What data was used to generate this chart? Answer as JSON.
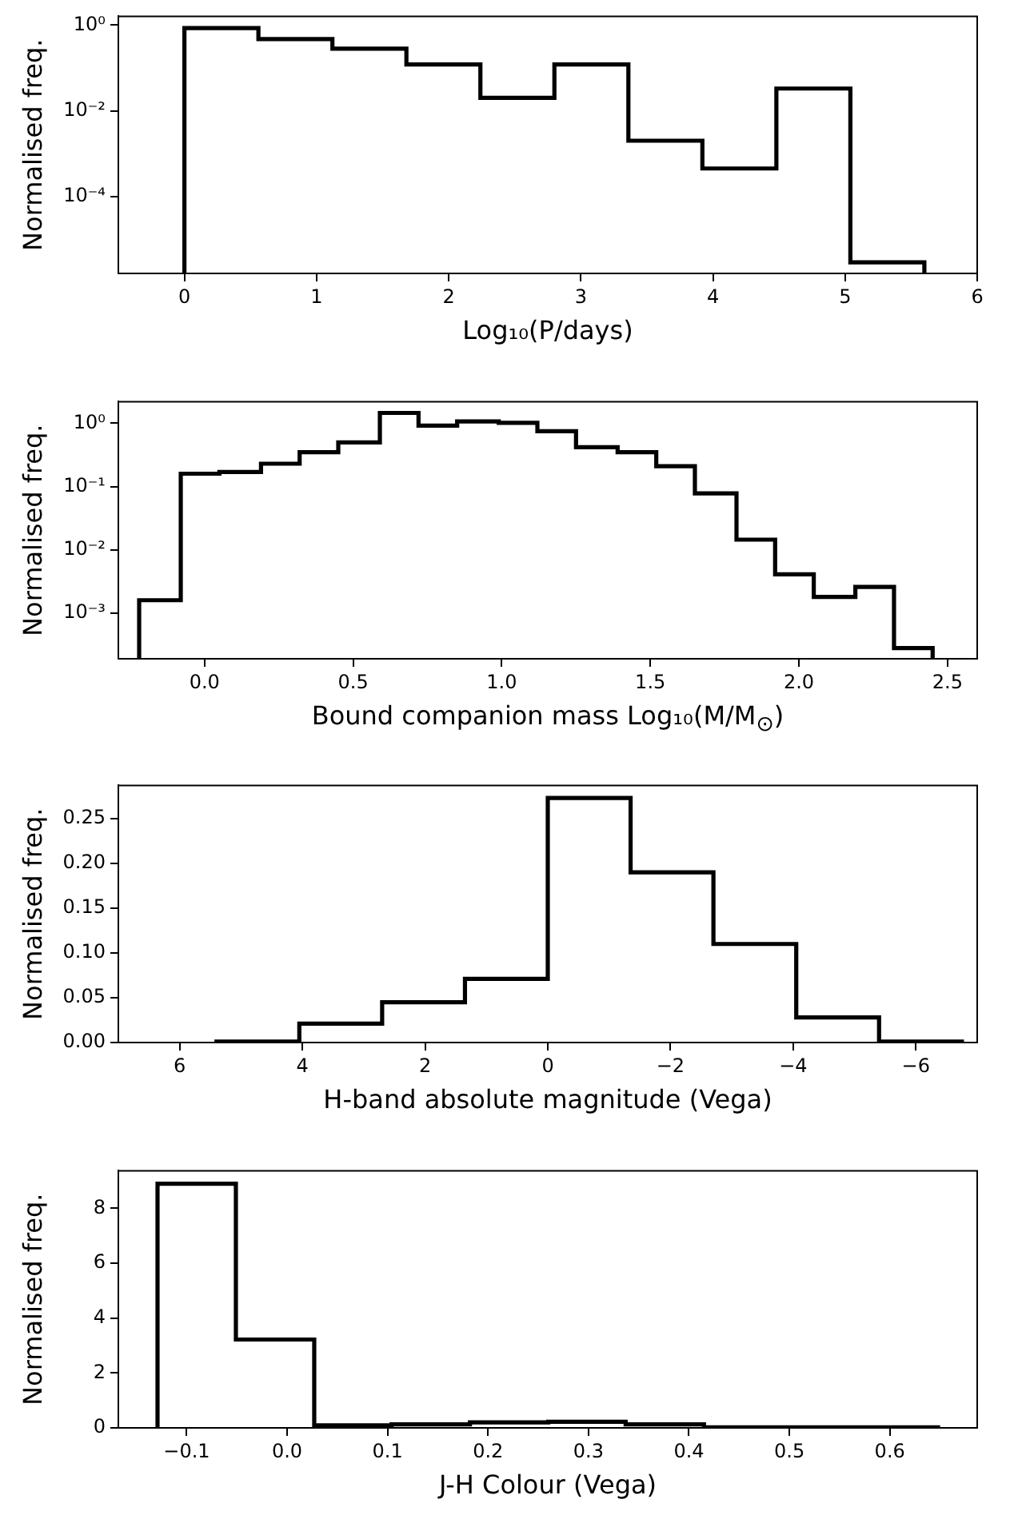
{
  "chart_data": [
    {
      "type": "histogram",
      "xlabel": "Log₁₀(P/days)",
      "ylabel": "Normalised freq.",
      "log": "y",
      "color": "#000000",
      "bins": [
        0,
        0.56,
        1.12,
        1.68,
        2.24,
        2.8,
        3.36,
        3.92,
        4.48,
        5.04,
        5.6
      ],
      "values": [
        0.85,
        0.47,
        0.28,
        0.12,
        0.02,
        0.12,
        0.002,
        0.00045,
        0.033,
        2.9e-06
      ],
      "xlim": [
        -0.5,
        6
      ],
      "xticks": [
        0,
        1,
        2,
        3,
        4,
        5,
        6
      ],
      "ylim": [
        1.6e-06,
        1.6
      ],
      "yticks": [
        {
          "value": 1,
          "label": "10⁰"
        },
        {
          "value": 0.01,
          "label": "10⁻²"
        },
        {
          "value": 0.0001,
          "label": "10⁻⁴"
        }
      ]
    },
    {
      "type": "histogram",
      "xlabel": "Bound companion mass Log₁₀(M/M$_{⊙}$)",
      "ylabel": "Normalised freq.",
      "log": "y",
      "color": "#000000",
      "bins": [
        -0.22,
        -0.08,
        0.05,
        0.19,
        0.32,
        0.45,
        0.59,
        0.72,
        0.85,
        0.99,
        1.12,
        1.25,
        1.39,
        1.52,
        1.65,
        1.79,
        1.92,
        2.05,
        2.19,
        2.32,
        2.45
      ],
      "values": [
        0.0016,
        0.16,
        0.17,
        0.23,
        0.35,
        0.5,
        1.46,
        0.92,
        1.07,
        1.02,
        0.75,
        0.42,
        0.35,
        0.21,
        0.078,
        0.0145,
        0.0041,
        0.0018,
        0.0026,
        0.00028
      ],
      "xlim": [
        -0.29,
        2.6
      ],
      "xticks": [
        {
          "value": 0,
          "label": "0.0"
        },
        {
          "value": 0.5,
          "label": "0.5"
        },
        {
          "value": 1,
          "label": "1.0"
        },
        {
          "value": 1.5,
          "label": "1.5"
        },
        {
          "value": 2,
          "label": "2.0"
        },
        {
          "value": 2.5,
          "label": "2.5"
        }
      ],
      "ylim": [
        0.00019,
        2.2
      ],
      "yticks": [
        {
          "value": 1,
          "label": "10⁰"
        },
        {
          "value": 0.1,
          "label": "10⁻¹"
        },
        {
          "value": 0.01,
          "label": "10⁻²"
        },
        {
          "value": 0.001,
          "label": "10⁻³"
        }
      ]
    },
    {
      "type": "histogram",
      "xlabel": "H-band absolute magnitude (Vega)",
      "ylabel": "Normalised freq.",
      "color": "#000000",
      "bins": [
        -6.75,
        -5.4,
        -4.05,
        -2.7,
        -1.35,
        0,
        1.35,
        2.7,
        4.05,
        5.4
      ],
      "values": [
        0.001,
        0.028,
        0.11,
        0.19,
        0.273,
        0.071,
        0.045,
        0.021,
        0.001
      ],
      "xlim": [
        7,
        -7
      ],
      "xticks": [
        6,
        4,
        2,
        0,
        {
          "value": -2,
          "label": "−2"
        },
        {
          "value": -4,
          "label": "−4"
        },
        {
          "value": -6,
          "label": "−6"
        }
      ],
      "ylim": [
        0,
        0.287
      ],
      "yticks": [
        {
          "value": 0,
          "label": "0.00"
        },
        {
          "value": 0.05,
          "label": "0.05"
        },
        {
          "value": 0.1,
          "label": "0.10"
        },
        {
          "value": 0.15,
          "label": "0.15"
        },
        {
          "value": 0.2,
          "label": "0.20"
        },
        {
          "value": 0.25,
          "label": "0.25"
        }
      ]
    },
    {
      "type": "histogram",
      "xlabel": "J-H Colour (Vega)",
      "ylabel": "Normalised freq.",
      "color": "#000000",
      "bins": [
        -0.129,
        -0.051,
        0.027,
        0.104,
        0.182,
        0.26,
        0.337,
        0.415,
        0.493,
        0.57,
        0.648
      ],
      "values": [
        8.9,
        3.22,
        0.09,
        0.13,
        0.2,
        0.22,
        0.13,
        0.02,
        0.02,
        0.02
      ],
      "xlim": [
        -0.168,
        0.687
      ],
      "xticks": [
        {
          "value": -0.1,
          "label": "−0.1"
        },
        {
          "value": 0,
          "label": "0.0"
        },
        {
          "value": 0.1,
          "label": "0.1"
        },
        {
          "value": 0.2,
          "label": "0.2"
        },
        {
          "value": 0.3,
          "label": "0.3"
        },
        {
          "value": 0.4,
          "label": "0.4"
        },
        {
          "value": 0.5,
          "label": "0.5"
        },
        {
          "value": 0.6,
          "label": "0.6"
        }
      ],
      "ylim": [
        0,
        9.37
      ],
      "yticks": [
        0,
        2,
        4,
        6,
        8
      ]
    }
  ]
}
